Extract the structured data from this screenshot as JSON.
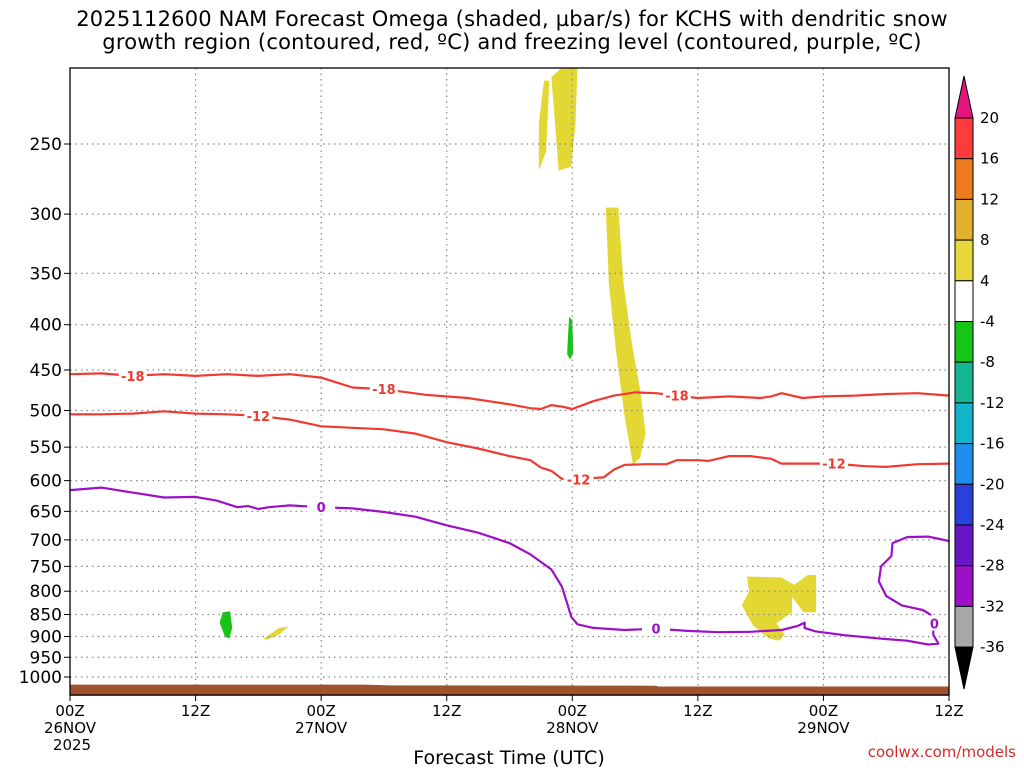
{
  "title": {
    "line1": "2025112600 NAM Forecast Omega (shaded, µbar/s) for KCHS with dendritic snow",
    "line2": "growth region (contoured, red, ºC) and freezing level (contoured, purple, ºC)"
  },
  "credit": "coolwx.com/models",
  "colors": {
    "dgz_contour": "#ee3b32",
    "freezing_contour": "#9c10c8",
    "terrain": "#a0522d",
    "grid": "#888888"
  },
  "chart_data": {
    "type": "heatmap",
    "xlabel": "Forecast Time (UTC)",
    "ylabel": "",
    "x_range_hours": [
      0,
      84
    ],
    "y_range_hpa": [
      1050,
      200
    ],
    "y_scale": "log",
    "grid": true,
    "yticks": [
      250,
      300,
      350,
      400,
      450,
      500,
      550,
      600,
      650,
      700,
      750,
      800,
      850,
      900,
      950,
      1000
    ],
    "xticks": [
      {
        "h": 0,
        "l1": "00Z",
        "l2": "26NOV",
        "l3": "2025"
      },
      {
        "h": 12,
        "l1": "12Z",
        "l2": "",
        "l3": ""
      },
      {
        "h": 24,
        "l1": "00Z",
        "l2": "27NOV",
        "l3": ""
      },
      {
        "h": 36,
        "l1": "12Z",
        "l2": "",
        "l3": ""
      },
      {
        "h": 48,
        "l1": "00Z",
        "l2": "28NOV",
        "l3": ""
      },
      {
        "h": 60,
        "l1": "12Z",
        "l2": "",
        "l3": ""
      },
      {
        "h": 72,
        "l1": "00Z",
        "l2": "29NOV",
        "l3": ""
      },
      {
        "h": 84,
        "l1": "12Z",
        "l2": "",
        "l3": ""
      }
    ],
    "colorbar": {
      "labels": [
        "20",
        "16",
        "12",
        "8",
        "4",
        "-4",
        "-8",
        "-12",
        "-16",
        "-20",
        "-24",
        "-28",
        "-32",
        "-36"
      ],
      "colors": [
        "#ff3c3c",
        "#ee7a1e",
        "#e0b12c",
        "#e6d83a",
        "#ffffff",
        "#16c616",
        "#13b893",
        "#11b4c8",
        "#1e8eee",
        "#2a40dd",
        "#6a16c8",
        "#9c10c8",
        "#a8a8a8"
      ],
      "top_arrow": "#e0157e",
      "bottom_arrow": "#000000"
    },
    "omega_shaded": [
      {
        "color": "#e3d833",
        "points": [
          [
            44.8,
            261
          ],
          [
            44.8,
            268
          ],
          [
            45.5,
            255
          ],
          [
            45.8,
            212
          ],
          [
            45.3,
            212
          ],
          [
            44.8,
            237
          ]
        ]
      },
      {
        "color": "#e3d833",
        "points": [
          [
            46.0,
            210
          ],
          [
            46.7,
            268
          ],
          [
            47.9,
            265
          ],
          [
            48.3,
            238
          ],
          [
            48.5,
            205
          ],
          [
            47.0,
            205
          ]
        ]
      },
      {
        "color": "#e3d833",
        "points": [
          [
            51.2,
            295
          ],
          [
            51.5,
            360
          ],
          [
            52.2,
            430
          ],
          [
            53.0,
            508
          ],
          [
            53.8,
            576
          ],
          [
            54.5,
            565
          ],
          [
            55.0,
            530
          ],
          [
            54.5,
            475
          ],
          [
            53.7,
            420
          ],
          [
            52.9,
            360
          ],
          [
            52.4,
            295
          ]
        ]
      },
      {
        "color": "#16c616",
        "points": [
          [
            47.6,
            410
          ],
          [
            47.5,
            432
          ],
          [
            47.8,
            438
          ],
          [
            48.1,
            430
          ],
          [
            48.0,
            395
          ],
          [
            47.7,
            392
          ]
        ]
      },
      {
        "color": "#16c616",
        "points": [
          [
            14.6,
            845
          ],
          [
            14.3,
            868
          ],
          [
            14.8,
            900
          ],
          [
            15.2,
            905
          ],
          [
            15.5,
            880
          ],
          [
            15.3,
            843
          ]
        ]
      },
      {
        "color": "#e3d833",
        "points": [
          [
            18.5,
            905
          ],
          [
            20.0,
            880
          ],
          [
            20.9,
            877
          ],
          [
            20.0,
            895
          ],
          [
            18.8,
            908
          ]
        ]
      },
      {
        "color": "#e3d833",
        "points": [
          [
            64.7,
            770
          ],
          [
            64.9,
            800
          ],
          [
            64.2,
            830
          ],
          [
            65.3,
            875
          ],
          [
            66.8,
            905
          ],
          [
            67.8,
            910
          ],
          [
            68.3,
            895
          ],
          [
            67.5,
            870
          ],
          [
            69.0,
            845
          ],
          [
            69.0,
            812
          ],
          [
            70.1,
            845
          ],
          [
            71.3,
            845
          ],
          [
            71.3,
            767
          ],
          [
            70.5,
            767
          ],
          [
            69.2,
            787
          ],
          [
            68.0,
            772
          ]
        ]
      }
    ],
    "dgz_contours": [
      {
        "label": "-18",
        "points": [
          [
            0,
            455
          ],
          [
            3,
            454
          ],
          [
            6,
            457
          ],
          [
            9,
            455
          ],
          [
            12,
            457
          ],
          [
            15,
            455
          ],
          [
            18,
            457
          ],
          [
            21,
            455
          ],
          [
            24,
            459
          ],
          [
            27,
            471
          ],
          [
            30,
            473
          ],
          [
            34,
            480
          ],
          [
            38,
            484
          ],
          [
            42,
            492
          ],
          [
            44,
            497
          ],
          [
            45,
            498
          ],
          [
            46,
            493
          ],
          [
            47,
            495
          ],
          [
            48,
            498
          ],
          [
            50,
            488
          ],
          [
            52,
            481
          ],
          [
            54,
            477
          ],
          [
            56,
            478
          ],
          [
            58,
            481
          ],
          [
            60,
            484
          ],
          [
            63,
            482
          ],
          [
            66,
            484
          ],
          [
            67,
            482
          ],
          [
            68,
            478
          ],
          [
            70,
            484
          ],
          [
            72,
            482
          ],
          [
            75,
            481
          ],
          [
            78,
            479
          ],
          [
            81,
            478
          ],
          [
            84,
            481
          ]
        ]
      },
      {
        "label": "-12",
        "points": [
          [
            0,
            505
          ],
          [
            3,
            505
          ],
          [
            6,
            504
          ],
          [
            9,
            501
          ],
          [
            12,
            504
          ],
          [
            15,
            505
          ],
          [
            18,
            507
          ],
          [
            21,
            512
          ],
          [
            24,
            521
          ],
          [
            27,
            523
          ],
          [
            30,
            525
          ],
          [
            33,
            531
          ],
          [
            36,
            543
          ],
          [
            39,
            552
          ],
          [
            42,
            563
          ],
          [
            44,
            569
          ],
          [
            45,
            580
          ],
          [
            46,
            585
          ],
          [
            47,
            597
          ],
          [
            48,
            600
          ],
          [
            50,
            596
          ],
          [
            51,
            595
          ],
          [
            52,
            583
          ],
          [
            53,
            576
          ],
          [
            55,
            575
          ],
          [
            57,
            575
          ],
          [
            58,
            569
          ],
          [
            60,
            569
          ],
          [
            61,
            570
          ],
          [
            63,
            563
          ],
          [
            65,
            563
          ],
          [
            67,
            567
          ],
          [
            68,
            574
          ],
          [
            70,
            574
          ],
          [
            73,
            574
          ],
          [
            76,
            578
          ],
          [
            78,
            579
          ],
          [
            81,
            575
          ],
          [
            84,
            574
          ]
        ]
      },
      {
        "label": "-12",
        "points": [
          [
            50,
            596
          ],
          [
            51,
            595
          ],
          [
            52,
            583
          ],
          [
            53,
            576
          ],
          [
            55,
            575
          ],
          [
            57,
            575
          ],
          [
            58,
            569
          ],
          [
            60,
            569
          ]
        ]
      }
    ],
    "freezing_contours": [
      {
        "label": "0",
        "points": [
          [
            0,
            615
          ],
          [
            3,
            611
          ],
          [
            6,
            619
          ],
          [
            9,
            627
          ],
          [
            12,
            626
          ],
          [
            14,
            632
          ],
          [
            16,
            643
          ],
          [
            17,
            641
          ],
          [
            18,
            646
          ],
          [
            19,
            643
          ],
          [
            21,
            640
          ],
          [
            24,
            643
          ],
          [
            27,
            645
          ],
          [
            30,
            651
          ],
          [
            33,
            659
          ],
          [
            36,
            674
          ],
          [
            39,
            687
          ],
          [
            42,
            706
          ],
          [
            44,
            727
          ],
          [
            46,
            756
          ],
          [
            47,
            790
          ],
          [
            47.6,
            832
          ],
          [
            47.9,
            855
          ],
          [
            48.5,
            872
          ],
          [
            50,
            880
          ],
          [
            53,
            885
          ],
          [
            56,
            882
          ],
          [
            59,
            887
          ],
          [
            62,
            890
          ],
          [
            65,
            889
          ],
          [
            68,
            885
          ],
          [
            69.5,
            876
          ],
          [
            70.2,
            868
          ],
          [
            70.2,
            880
          ],
          [
            71.2,
            888
          ],
          [
            74,
            897
          ],
          [
            77,
            904
          ],
          [
            80,
            910
          ],
          [
            82,
            919
          ],
          [
            83,
            917
          ],
          [
            82.5,
            896
          ],
          [
            82.5,
            888
          ],
          [
            82.6,
            870
          ],
          [
            82.2,
            850
          ],
          [
            81.5,
            840
          ],
          [
            79.5,
            830
          ],
          [
            78,
            810
          ],
          [
            77.3,
            780
          ],
          [
            77.5,
            750
          ],
          [
            78.5,
            730
          ],
          [
            78.6,
            706
          ],
          [
            80,
            695
          ],
          [
            82,
            694
          ],
          [
            84,
            702
          ]
        ]
      }
    ]
  }
}
